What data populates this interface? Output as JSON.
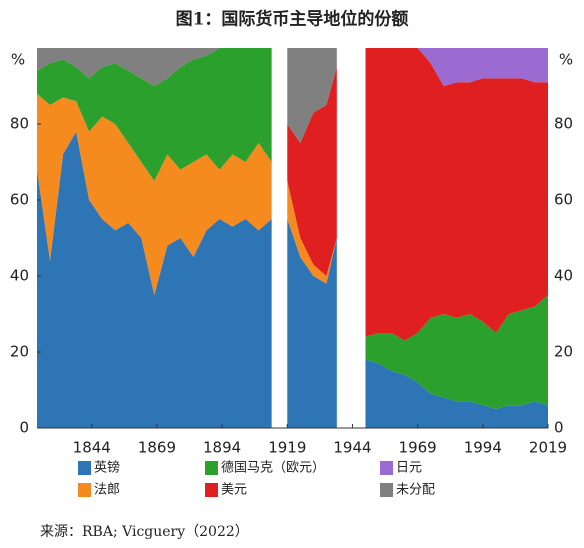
{
  "chart_data": {
    "type": "stacked_area",
    "title": "图1：国际货币主导地位的份额",
    "y_label": "%",
    "source": "来源：RBA; Vicguery（2022）",
    "x": [
      1823,
      1828,
      1833,
      1838,
      1843,
      1848,
      1853,
      1858,
      1863,
      1868,
      1873,
      1878,
      1883,
      1888,
      1893,
      1898,
      1903,
      1908,
      1913,
      1916,
      1919,
      1924,
      1929,
      1934,
      1938,
      1943,
      1949,
      1954,
      1959,
      1964,
      1969,
      1974,
      1979,
      1984,
      1989,
      1994,
      1999,
      2004,
      2009,
      2014,
      2019
    ],
    "xlim": [
      1823,
      2019
    ],
    "xticks": [
      1844,
      1869,
      1894,
      1919,
      1944,
      1969,
      1994,
      2019
    ],
    "ylim": [
      0,
      100
    ],
    "yticks": [
      0,
      20,
      40,
      60,
      80
    ],
    "series": [
      {
        "name": "英镑",
        "color": "#2e75b6",
        "values": [
          68,
          44,
          72,
          78,
          60,
          55,
          52,
          54,
          50,
          35,
          48,
          50,
          45,
          52,
          55,
          53,
          55,
          52,
          55,
          null,
          55,
          45,
          40,
          38,
          50,
          null,
          18,
          17,
          15,
          14,
          12,
          9,
          8,
          7,
          7,
          6,
          5,
          6,
          6,
          7,
          6
        ]
      },
      {
        "name": "法郎",
        "color": "#f58a1f",
        "values": [
          20,
          41,
          15,
          8,
          18,
          27,
          28,
          21,
          20,
          30,
          24,
          18,
          25,
          20,
          13,
          19,
          15,
          23,
          15,
          null,
          10,
          5,
          3,
          2,
          0,
          null,
          0,
          0,
          0,
          0,
          0,
          0,
          0,
          0,
          0,
          0,
          0,
          0,
          0,
          0,
          0
        ]
      },
      {
        "name": "德国马克（欧元）",
        "color": "#2ca02c",
        "values": [
          6,
          11,
          10,
          9,
          14,
          13,
          16,
          19,
          22,
          25,
          20,
          27,
          27,
          26,
          32,
          28,
          30,
          25,
          30,
          null,
          0,
          0,
          0,
          0,
          0,
          null,
          6,
          8,
          10,
          9,
          13,
          20,
          22,
          22,
          23,
          22,
          20,
          24,
          25,
          25,
          29
        ]
      },
      {
        "name": "美元",
        "color": "#e02020",
        "values": [
          0,
          0,
          0,
          0,
          0,
          0,
          0,
          0,
          0,
          0,
          0,
          0,
          0,
          0,
          0,
          0,
          0,
          0,
          0,
          null,
          15,
          25,
          40,
          45,
          45,
          null,
          76,
          75,
          75,
          77,
          75,
          67,
          60,
          62,
          61,
          64,
          67,
          62,
          61,
          59,
          56
        ]
      },
      {
        "name": "日元",
        "color": "#9b6bd1",
        "values": [
          0,
          0,
          0,
          0,
          0,
          0,
          0,
          0,
          0,
          0,
          0,
          0,
          0,
          0,
          0,
          0,
          0,
          0,
          0,
          null,
          0,
          0,
          0,
          0,
          0,
          null,
          0,
          0,
          0,
          0,
          0,
          4,
          10,
          9,
          9,
          8,
          8,
          8,
          8,
          9,
          9
        ]
      },
      {
        "name": "未分配",
        "color": "#808080",
        "values": [
          6,
          4,
          3,
          5,
          8,
          5,
          4,
          6,
          8,
          10,
          8,
          5,
          3,
          2,
          0,
          0,
          0,
          0,
          0,
          null,
          20,
          25,
          17,
          15,
          5,
          null,
          0,
          0,
          0,
          0,
          0,
          0,
          0,
          0,
          0,
          0,
          0,
          0,
          0,
          0,
          0
        ]
      }
    ]
  }
}
